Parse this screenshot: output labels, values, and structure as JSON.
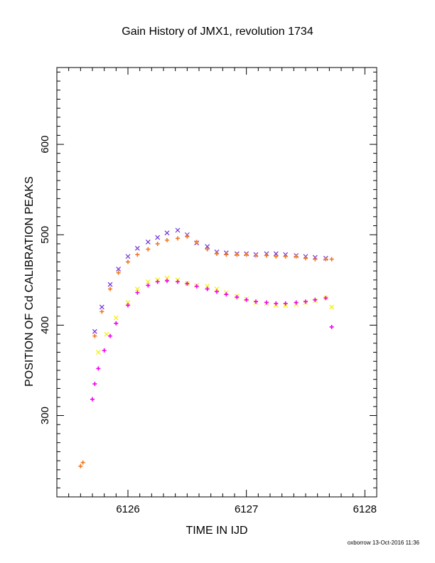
{
  "chart_data": {
    "type": "scatter",
    "title": "Gain History of JMX1, revolution 1734",
    "xlabel": "TIME IN IJD",
    "ylabel": "POSITION OF Cd CALIBRATION PEAKS",
    "xlim": [
      6125.4,
      6128.1
    ],
    "ylim": [
      210,
      685
    ],
    "x_ticks": [
      6126,
      6127,
      6128
    ],
    "y_ticks": [
      300,
      400,
      500,
      600
    ],
    "grid": false,
    "legend": "none",
    "series": [
      {
        "marker": "x",
        "color": "#7030d8",
        "x": [
          6125.72,
          6125.78,
          6125.85,
          6125.92,
          6126.0,
          6126.08,
          6126.17,
          6126.25,
          6126.33,
          6126.42,
          6126.5,
          6126.58,
          6126.67,
          6126.75,
          6126.83,
          6126.92,
          6127.0,
          6127.08,
          6127.17,
          6127.25,
          6127.33,
          6127.42,
          6127.5,
          6127.58,
          6127.67
        ],
        "y": [
          393,
          420,
          445,
          462,
          476,
          485,
          492,
          497,
          502,
          505,
          500,
          491,
          487,
          481,
          480,
          479,
          479,
          478,
          479,
          479,
          478,
          477,
          476,
          475,
          474
        ]
      },
      {
        "marker": "+",
        "color": "#f07820",
        "x": [
          6125.6,
          6125.62,
          6125.72,
          6125.78,
          6125.85,
          6125.92,
          6126.0,
          6126.08,
          6126.17,
          6126.25,
          6126.33,
          6126.42,
          6126.5,
          6126.58,
          6126.67,
          6126.75,
          6126.83,
          6126.92,
          6127.0,
          6127.08,
          6127.17,
          6127.25,
          6127.33,
          6127.42,
          6127.5,
          6127.58,
          6127.67,
          6127.72
        ],
        "y": [
          244,
          248,
          388,
          415,
          440,
          458,
          470,
          478,
          484,
          490,
          494,
          496,
          498,
          492,
          484,
          479,
          478,
          478,
          478,
          477,
          477,
          476,
          476,
          476,
          474,
          473,
          473,
          473
        ]
      },
      {
        "marker": "x",
        "color": "#f0f000",
        "x": [
          6125.75,
          6125.82,
          6125.9,
          6126.0,
          6126.08,
          6126.17,
          6126.25,
          6126.33,
          6126.42,
          6126.5,
          6126.58,
          6126.67,
          6126.75,
          6126.83,
          6126.92,
          6127.0,
          6127.08,
          6127.17,
          6127.25,
          6127.33,
          6127.42,
          6127.5,
          6127.58,
          6127.67,
          6127.72
        ],
        "y": [
          370,
          390,
          408,
          425,
          440,
          448,
          450,
          452,
          450,
          446,
          444,
          443,
          440,
          436,
          432,
          429,
          425,
          424,
          422,
          422,
          423,
          425,
          427,
          430,
          420
        ]
      },
      {
        "marker": "+",
        "color": "#f000f0",
        "x": [
          6125.7,
          6125.72,
          6125.75,
          6125.8,
          6125.85,
          6125.9,
          6126.0,
          6126.08,
          6126.17,
          6126.25,
          6126.33,
          6126.42,
          6126.5,
          6126.58,
          6126.67,
          6126.75,
          6126.83,
          6126.92,
          6127.0,
          6127.08,
          6127.17,
          6127.25,
          6127.33,
          6127.42,
          6127.5,
          6127.58,
          6127.67,
          6127.72
        ],
        "y": [
          318,
          335,
          352,
          372,
          388,
          402,
          422,
          436,
          444,
          448,
          449,
          448,
          446,
          443,
          440,
          437,
          434,
          431,
          428,
          426,
          425,
          424,
          424,
          425,
          426,
          428,
          430,
          398
        ]
      }
    ]
  },
  "footer": "oxborrow 13-Oct-2016 11:36"
}
